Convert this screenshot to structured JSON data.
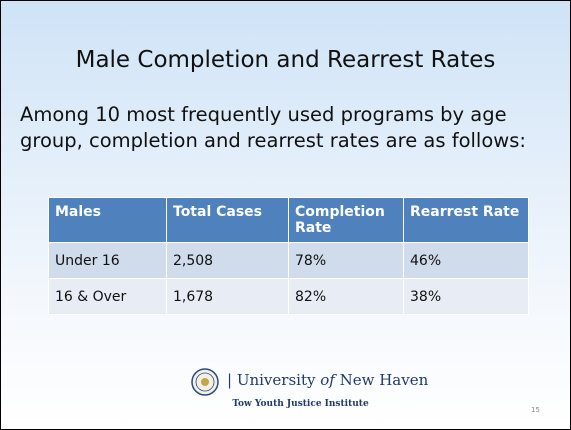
{
  "header": {
    "title": "Male Completion and Rearrest Rates"
  },
  "intro": "Among 10 most frequently used programs by age group, completion and rearrest rates are as follows:",
  "table": {
    "columns": [
      "Males",
      "Total Cases",
      "Completion Rate",
      "Rearrest Rate"
    ],
    "rows": [
      [
        "Under 16",
        "2,508",
        "78%",
        "46%"
      ],
      [
        "16 & Over",
        "1,678",
        "82%",
        "38%"
      ]
    ]
  },
  "footer": {
    "name_parts": [
      "University",
      "of",
      "New Haven"
    ],
    "institute": "Tow Youth Justice Institute",
    "page": "15"
  }
}
